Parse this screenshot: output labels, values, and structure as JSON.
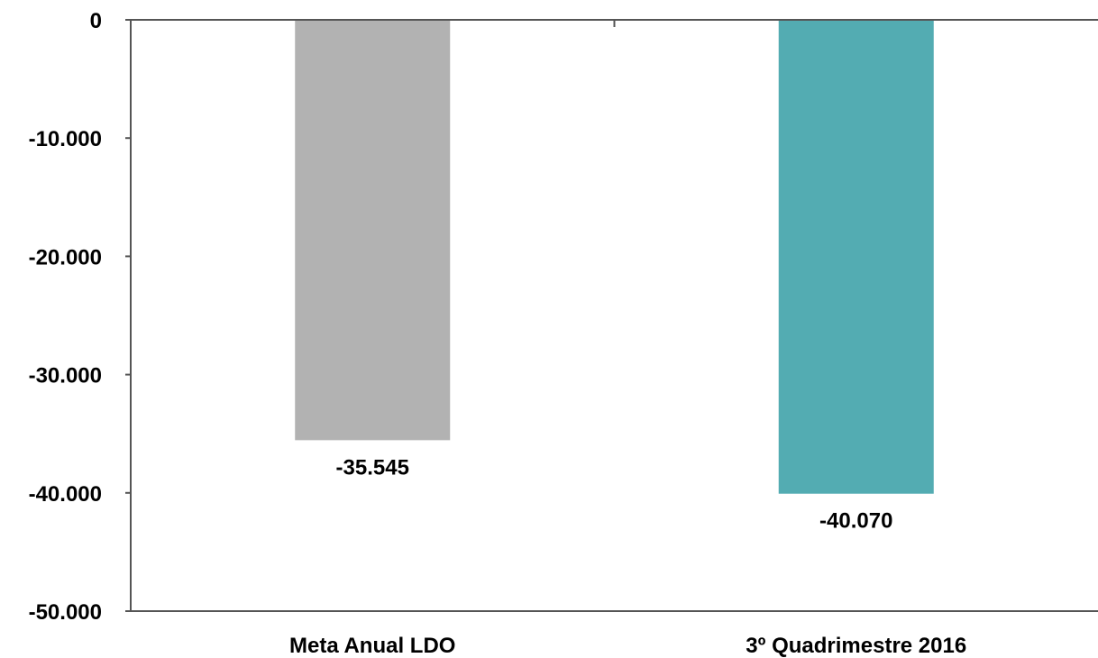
{
  "chart_data": {
    "type": "bar",
    "title": "",
    "xlabel": "",
    "ylabel": "",
    "categories": [
      "Meta Anual LDO",
      "3º Quadrimestre 2016"
    ],
    "values": [
      -35545,
      -40070
    ],
    "data_labels": [
      "-35.545",
      "-40.070"
    ],
    "colors": [
      "#b2b2b2",
      "#53acb2"
    ],
    "ylim": [
      -50000,
      0
    ],
    "yticks": [
      0,
      -10000,
      -20000,
      -30000,
      -40000,
      -50000
    ],
    "ytick_labels": [
      "0",
      "-10.000",
      "-20.000",
      "-30.000",
      "-40.000",
      "-50.000"
    ],
    "grid": false,
    "legend": "none"
  }
}
